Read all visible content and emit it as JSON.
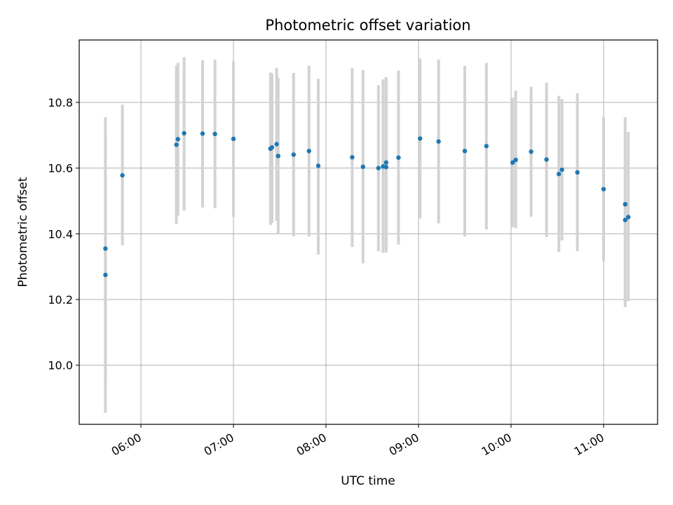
{
  "chart_data": {
    "type": "scatter",
    "title": "Photometric offset variation",
    "xlabel": "UTC time",
    "ylabel": "Photometric offset",
    "grid": true,
    "x_unit": "UTC hours",
    "xlim": [
      "05:20",
      "11:35"
    ],
    "ylim": [
      9.82,
      10.99
    ],
    "x_ticks": [
      "06:00",
      "07:00",
      "08:00",
      "09:00",
      "10:00",
      "11:00"
    ],
    "y_ticks": [
      "10.0",
      "10.2",
      "10.4",
      "10.6",
      "10.8"
    ],
    "colors": {
      "points": "#1f77b4",
      "errorbars": "#d3d3d3",
      "grid": "#b0b0b0"
    },
    "series": [
      {
        "x": [
          "05:37",
          "05:37",
          "05:48",
          "06:23",
          "06:24",
          "06:28",
          "06:40",
          "06:48",
          "07:00",
          "07:24",
          "07:25",
          "07:28",
          "07:29",
          "07:39",
          "07:49",
          "07:55",
          "08:17",
          "08:24",
          "08:34",
          "08:37",
          "08:39",
          "08:39",
          "08:47",
          "09:01",
          "09:13",
          "09:30",
          "09:44",
          "10:01",
          "10:03",
          "10:13",
          "10:23",
          "10:31",
          "10:33",
          "10:43",
          "11:00",
          "11:14",
          "11:14",
          "11:16"
        ],
        "y": [
          10.275,
          10.355,
          10.578,
          10.671,
          10.688,
          10.706,
          10.705,
          10.704,
          10.689,
          10.659,
          10.663,
          10.673,
          10.637,
          10.641,
          10.652,
          10.607,
          10.633,
          10.604,
          10.6,
          10.605,
          10.603,
          10.617,
          10.632,
          10.69,
          10.681,
          10.652,
          10.667,
          10.617,
          10.625,
          10.65,
          10.626,
          10.582,
          10.595,
          10.587,
          10.536,
          10.442,
          10.49,
          10.451
        ],
        "yerr_low": [
          9.855,
          9.955,
          10.365,
          10.43,
          10.455,
          10.47,
          10.48,
          10.478,
          10.452,
          10.427,
          10.433,
          10.44,
          10.4,
          10.392,
          10.392,
          10.337,
          10.36,
          10.31,
          10.347,
          10.342,
          10.343,
          10.357,
          10.367,
          10.447,
          10.432,
          10.392,
          10.413,
          10.42,
          10.417,
          10.452,
          10.39,
          10.345,
          10.38,
          10.347,
          10.317,
          10.177,
          10.193,
          10.195
        ],
        "yerr_high": [
          10.695,
          10.755,
          10.793,
          10.912,
          10.921,
          10.938,
          10.928,
          10.93,
          10.925,
          10.891,
          10.888,
          10.905,
          10.875,
          10.89,
          10.912,
          10.872,
          10.904,
          10.898,
          10.852,
          10.87,
          10.875,
          10.877,
          10.897,
          10.934,
          10.93,
          10.911,
          10.92,
          10.814,
          10.836,
          10.848,
          10.86,
          10.82,
          10.81,
          10.828,
          10.755,
          10.705,
          10.755,
          10.71
        ]
      }
    ]
  }
}
